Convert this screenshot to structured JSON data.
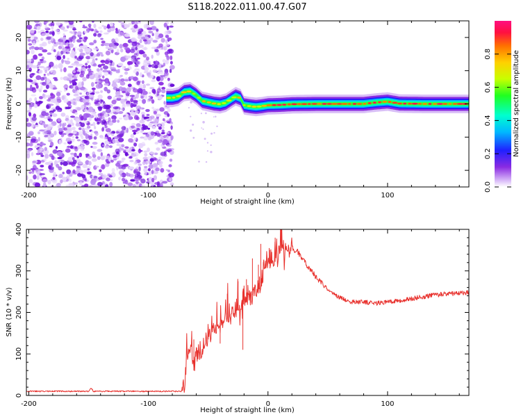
{
  "title": "S118.2022.011.00.47.G07",
  "colors": {
    "snr_line": "#e8312d",
    "dot_purple": "#8a2be2",
    "frame": "#000000"
  },
  "chart_data": [
    {
      "type": "heatmap",
      "name": "spectrogram",
      "xlabel": "Height of straight line (km)",
      "ylabel": "Frequency (Hz)",
      "xlim": [
        -202,
        168
      ],
      "ylim": [
        -25,
        25
      ],
      "xticks": [
        -200,
        -100,
        0,
        100
      ],
      "xtick_labels": [
        "-200",
        "-100",
        "0",
        "100"
      ],
      "yticks": [
        -20,
        -10,
        0,
        10,
        20
      ],
      "ytick_labels": [
        "-20",
        "-10",
        "0",
        "10",
        "20"
      ],
      "noise_region_x": [
        -202,
        -82
      ],
      "ridge": {
        "x": [
          -85,
          -80,
          -75,
          -70,
          -65,
          -60,
          -55,
          -50,
          -45,
          -40,
          -35,
          -30,
          -27,
          -23,
          -20,
          -15,
          -10,
          -5,
          0,
          10,
          20,
          40,
          60,
          80,
          90,
          100,
          110,
          130,
          168
        ],
        "y": [
          1.8,
          1.8,
          2.2,
          3.6,
          3.8,
          2.6,
          0.9,
          0.5,
          0.1,
          -0.1,
          0.4,
          1.6,
          2.3,
          1.7,
          -0.4,
          -0.7,
          -0.9,
          -0.7,
          -0.4,
          -0.3,
          -0.1,
          0.0,
          0.0,
          0.0,
          0.4,
          0.7,
          0.1,
          0.0,
          0.0
        ]
      },
      "colorbar": {
        "label": "Normalized spectral amplitude",
        "range": [
          0,
          1
        ],
        "ticks": [
          0.0,
          0.2,
          0.4,
          0.6,
          0.8
        ],
        "tick_labels": [
          "0.0",
          "0.2",
          "0.4",
          "0.6",
          "0.8"
        ]
      }
    },
    {
      "type": "line",
      "name": "snr",
      "xlabel": "Height of straight line (km)",
      "ylabel": "SNR (10 * v/v)",
      "xlim": [
        -202,
        168
      ],
      "ylim": [
        0,
        400
      ],
      "xticks": [
        -200,
        -100,
        0,
        100
      ],
      "xtick_labels": [
        "-200",
        "-100",
        "0",
        "100"
      ],
      "yticks": [
        0,
        100,
        200,
        300,
        400
      ],
      "ytick_labels": [
        "0",
        "100",
        "200",
        "300",
        "400"
      ],
      "series": [
        {
          "name": "SNR",
          "x": [
            -202,
            -150,
            -148,
            -146,
            -120,
            -72,
            -70,
            -68,
            -65,
            -62,
            -60,
            -55,
            -50,
            -45,
            -40,
            -35,
            -30,
            -25,
            -20,
            -15,
            -10,
            -6,
            -3,
            0,
            5,
            10,
            12,
            15,
            20,
            25,
            30,
            40,
            50,
            60,
            70,
            80,
            90,
            100,
            110,
            120,
            130,
            140,
            150,
            160,
            168
          ],
          "y": [
            10,
            10,
            18,
            10,
            10,
            10,
            30,
            85,
            130,
            60,
            95,
            110,
            135,
            160,
            175,
            195,
            195,
            215,
            240,
            235,
            250,
            270,
            310,
            330,
            315,
            350,
            360,
            355,
            355,
            345,
            325,
            285,
            255,
            235,
            225,
            225,
            222,
            226,
            228,
            233,
            238,
            242,
            245,
            246,
            248
          ]
        }
      ],
      "annotations": [
        {
          "x": -62,
          "y": 135
        },
        {
          "x": -50,
          "y": 165
        },
        {
          "x": -34,
          "y": 245
        },
        {
          "x": -25,
          "y": 275
        },
        {
          "x": -18,
          "y": 280
        },
        {
          "x": -13,
          "y": 330
        },
        {
          "x": -8,
          "y": 315
        },
        {
          "x": -6,
          "y": 365
        },
        {
          "x": 1,
          "y": 355
        },
        {
          "x": 6,
          "y": 380
        },
        {
          "x": 11,
          "y": 400
        },
        {
          "x": -21,
          "y": 110
        },
        {
          "x": -40,
          "y": 125
        }
      ]
    }
  ]
}
